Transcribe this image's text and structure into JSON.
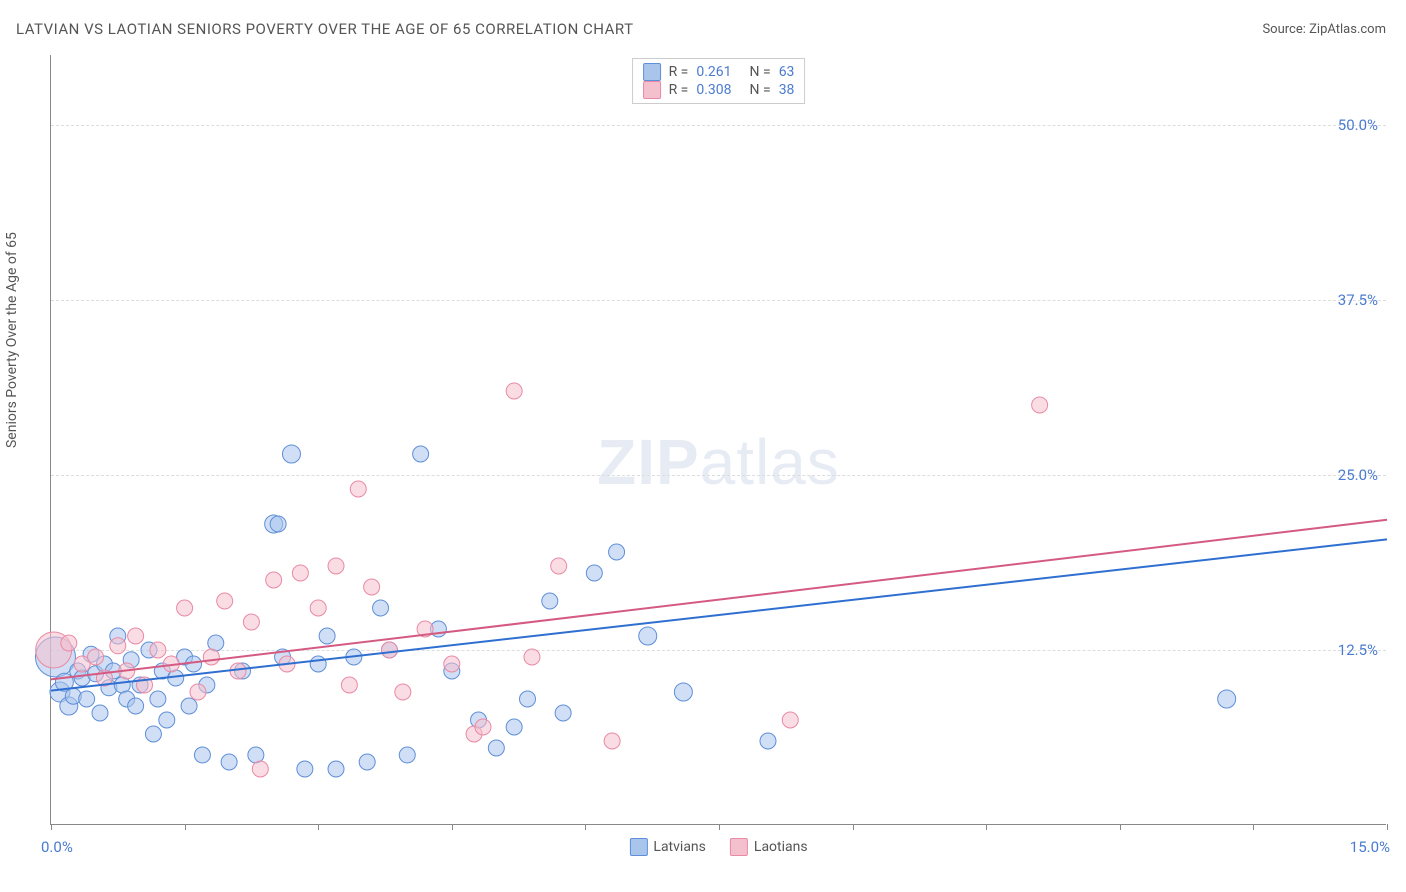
{
  "chart": {
    "type": "scatter",
    "title": "LATVIAN VS LAOTIAN SENIORS POVERTY OVER THE AGE OF 65 CORRELATION CHART",
    "source_label": "Source:",
    "source_name": "ZipAtlas.com",
    "y_axis_label": "Seniors Poverty Over the Age of 65",
    "watermark": "ZIPatlas",
    "background_color": "#ffffff",
    "grid_color": "#dddddd",
    "axis_color": "#888888",
    "tick_label_color": "#4a7bd0",
    "text_color": "#555555",
    "title_fontsize": 15,
    "tick_fontsize": 15,
    "label_fontsize": 14,
    "x_range": [
      0.0,
      15.0
    ],
    "y_range": [
      0.0,
      55.0
    ],
    "x_tick_step": 1.5,
    "x_tick_labels": {
      "left": "0.0%",
      "right": "15.0%"
    },
    "y_ticks": [
      {
        "value": 12.5,
        "label": "12.5%"
      },
      {
        "value": 25.0,
        "label": "25.0%"
      },
      {
        "value": 37.5,
        "label": "37.5%"
      },
      {
        "value": 50.0,
        "label": "50.0%"
      }
    ],
    "top_legend": {
      "rows": [
        {
          "swatch_fill": "#a9c5ec",
          "swatch_stroke": "#5f8fd8",
          "r_label": "R =",
          "r_value": "0.261",
          "n_label": "N =",
          "n_value": "63"
        },
        {
          "swatch_fill": "#f5c0cd",
          "swatch_stroke": "#e98aa5",
          "r_label": "R =",
          "r_value": "0.308",
          "n_label": "N =",
          "n_value": "38"
        }
      ]
    },
    "bottom_legend": [
      {
        "label": "Latvians",
        "swatch_fill": "#a9c5ec",
        "swatch_stroke": "#5f8fd8"
      },
      {
        "label": "Laotians",
        "swatch_fill": "#f5c0cd",
        "swatch_stroke": "#e98aa5"
      }
    ],
    "series": [
      {
        "name": "Latvians",
        "marker_fill": "#a9c5ec",
        "marker_stroke": "#5f8fd8",
        "marker_fill_opacity": 0.55,
        "marker_radius_default": 8,
        "trend_line_color": "#2f6fd0",
        "trend_line_width": 2,
        "trend_line": {
          "x1": 0.0,
          "y1": 9.6,
          "x2": 15.0,
          "y2": 20.4
        },
        "points": [
          {
            "x": 0.05,
            "y": 12.0,
            "r": 20
          },
          {
            "x": 0.1,
            "y": 9.5,
            "r": 10
          },
          {
            "x": 0.15,
            "y": 10.2,
            "r": 9
          },
          {
            "x": 0.2,
            "y": 8.5,
            "r": 9
          },
          {
            "x": 0.25,
            "y": 9.2,
            "r": 8
          },
          {
            "x": 0.3,
            "y": 11.0,
            "r": 8
          },
          {
            "x": 0.35,
            "y": 10.5,
            "r": 8
          },
          {
            "x": 0.4,
            "y": 9.0,
            "r": 8
          },
          {
            "x": 0.45,
            "y": 12.2,
            "r": 8
          },
          {
            "x": 0.5,
            "y": 10.8,
            "r": 8
          },
          {
            "x": 0.55,
            "y": 8.0,
            "r": 8
          },
          {
            "x": 0.6,
            "y": 11.5,
            "r": 8
          },
          {
            "x": 0.65,
            "y": 9.8,
            "r": 8
          },
          {
            "x": 0.7,
            "y": 11.0,
            "r": 8
          },
          {
            "x": 0.75,
            "y": 13.5,
            "r": 8
          },
          {
            "x": 0.8,
            "y": 10.0,
            "r": 8
          },
          {
            "x": 0.85,
            "y": 9.0,
            "r": 8
          },
          {
            "x": 0.9,
            "y": 11.8,
            "r": 8
          },
          {
            "x": 0.95,
            "y": 8.5,
            "r": 8
          },
          {
            "x": 1.0,
            "y": 10.0,
            "r": 8
          },
          {
            "x": 1.1,
            "y": 12.5,
            "r": 8
          },
          {
            "x": 1.15,
            "y": 6.5,
            "r": 8
          },
          {
            "x": 1.2,
            "y": 9.0,
            "r": 8
          },
          {
            "x": 1.25,
            "y": 11.0,
            "r": 8
          },
          {
            "x": 1.3,
            "y": 7.5,
            "r": 8
          },
          {
            "x": 1.4,
            "y": 10.5,
            "r": 8
          },
          {
            "x": 1.5,
            "y": 12.0,
            "r": 8
          },
          {
            "x": 1.55,
            "y": 8.5,
            "r": 8
          },
          {
            "x": 1.6,
            "y": 11.5,
            "r": 8
          },
          {
            "x": 1.7,
            "y": 5.0,
            "r": 8
          },
          {
            "x": 1.75,
            "y": 10.0,
            "r": 8
          },
          {
            "x": 1.85,
            "y": 13.0,
            "r": 8
          },
          {
            "x": 2.0,
            "y": 4.5,
            "r": 8
          },
          {
            "x": 2.15,
            "y": 11.0,
            "r": 8
          },
          {
            "x": 2.3,
            "y": 5.0,
            "r": 8
          },
          {
            "x": 2.5,
            "y": 21.5,
            "r": 9
          },
          {
            "x": 2.55,
            "y": 21.5,
            "r": 8
          },
          {
            "x": 2.6,
            "y": 12.0,
            "r": 8
          },
          {
            "x": 2.7,
            "y": 26.5,
            "r": 9
          },
          {
            "x": 2.85,
            "y": 4.0,
            "r": 8
          },
          {
            "x": 3.0,
            "y": 11.5,
            "r": 8
          },
          {
            "x": 3.1,
            "y": 13.5,
            "r": 8
          },
          {
            "x": 3.2,
            "y": 4.0,
            "r": 8
          },
          {
            "x": 3.4,
            "y": 12.0,
            "r": 8
          },
          {
            "x": 3.55,
            "y": 4.5,
            "r": 8
          },
          {
            "x": 3.7,
            "y": 15.5,
            "r": 8
          },
          {
            "x": 3.8,
            "y": 12.5,
            "r": 8
          },
          {
            "x": 4.0,
            "y": 5.0,
            "r": 8
          },
          {
            "x": 4.15,
            "y": 26.5,
            "r": 8
          },
          {
            "x": 4.35,
            "y": 14.0,
            "r": 8
          },
          {
            "x": 4.5,
            "y": 11.0,
            "r": 8
          },
          {
            "x": 4.8,
            "y": 7.5,
            "r": 8
          },
          {
            "x": 5.0,
            "y": 5.5,
            "r": 8
          },
          {
            "x": 5.2,
            "y": 7.0,
            "r": 8
          },
          {
            "x": 5.35,
            "y": 9.0,
            "r": 8
          },
          {
            "x": 5.6,
            "y": 16.0,
            "r": 8
          },
          {
            "x": 5.75,
            "y": 8.0,
            "r": 8
          },
          {
            "x": 6.1,
            "y": 18.0,
            "r": 8
          },
          {
            "x": 6.35,
            "y": 19.5,
            "r": 8
          },
          {
            "x": 6.7,
            "y": 13.5,
            "r": 9
          },
          {
            "x": 7.1,
            "y": 9.5,
            "r": 9
          },
          {
            "x": 8.05,
            "y": 6.0,
            "r": 8
          },
          {
            "x": 13.2,
            "y": 9.0,
            "r": 9
          }
        ]
      },
      {
        "name": "Laotians",
        "marker_fill": "#f5c0cd",
        "marker_stroke": "#e98aa5",
        "marker_fill_opacity": 0.55,
        "marker_radius_default": 8,
        "trend_line_color": "#d45a82",
        "trend_line_width": 2,
        "trend_line": {
          "x1": 0.0,
          "y1": 10.4,
          "x2": 15.0,
          "y2": 21.8
        },
        "points": [
          {
            "x": 0.03,
            "y": 12.5,
            "r": 18
          },
          {
            "x": 0.2,
            "y": 13.0,
            "r": 8
          },
          {
            "x": 0.35,
            "y": 11.5,
            "r": 8
          },
          {
            "x": 0.5,
            "y": 12.0,
            "r": 8
          },
          {
            "x": 0.6,
            "y": 10.5,
            "r": 8
          },
          {
            "x": 0.75,
            "y": 12.8,
            "r": 8
          },
          {
            "x": 0.85,
            "y": 11.0,
            "r": 8
          },
          {
            "x": 0.95,
            "y": 13.5,
            "r": 8
          },
          {
            "x": 1.05,
            "y": 10.0,
            "r": 8
          },
          {
            "x": 1.2,
            "y": 12.5,
            "r": 8
          },
          {
            "x": 1.35,
            "y": 11.5,
            "r": 8
          },
          {
            "x": 1.5,
            "y": 15.5,
            "r": 8
          },
          {
            "x": 1.65,
            "y": 9.5,
            "r": 8
          },
          {
            "x": 1.8,
            "y": 12.0,
            "r": 8
          },
          {
            "x": 1.95,
            "y": 16.0,
            "r": 8
          },
          {
            "x": 2.1,
            "y": 11.0,
            "r": 8
          },
          {
            "x": 2.25,
            "y": 14.5,
            "r": 8
          },
          {
            "x": 2.35,
            "y": 4.0,
            "r": 8
          },
          {
            "x": 2.5,
            "y": 17.5,
            "r": 8
          },
          {
            "x": 2.65,
            "y": 11.5,
            "r": 8
          },
          {
            "x": 2.8,
            "y": 18.0,
            "r": 8
          },
          {
            "x": 3.0,
            "y": 15.5,
            "r": 8
          },
          {
            "x": 3.2,
            "y": 18.5,
            "r": 8
          },
          {
            "x": 3.35,
            "y": 10.0,
            "r": 8
          },
          {
            "x": 3.45,
            "y": 24.0,
            "r": 8
          },
          {
            "x": 3.6,
            "y": 17.0,
            "r": 8
          },
          {
            "x": 3.8,
            "y": 12.5,
            "r": 8
          },
          {
            "x": 3.95,
            "y": 9.5,
            "r": 8
          },
          {
            "x": 4.2,
            "y": 14.0,
            "r": 8
          },
          {
            "x": 4.5,
            "y": 11.5,
            "r": 8
          },
          {
            "x": 4.75,
            "y": 6.5,
            "r": 8
          },
          {
            "x": 4.85,
            "y": 7.0,
            "r": 8
          },
          {
            "x": 5.2,
            "y": 31.0,
            "r": 8
          },
          {
            "x": 5.4,
            "y": 12.0,
            "r": 8
          },
          {
            "x": 5.7,
            "y": 18.5,
            "r": 8
          },
          {
            "x": 6.3,
            "y": 6.0,
            "r": 8
          },
          {
            "x": 8.3,
            "y": 7.5,
            "r": 8
          },
          {
            "x": 11.1,
            "y": 30.0,
            "r": 8
          }
        ]
      }
    ]
  }
}
